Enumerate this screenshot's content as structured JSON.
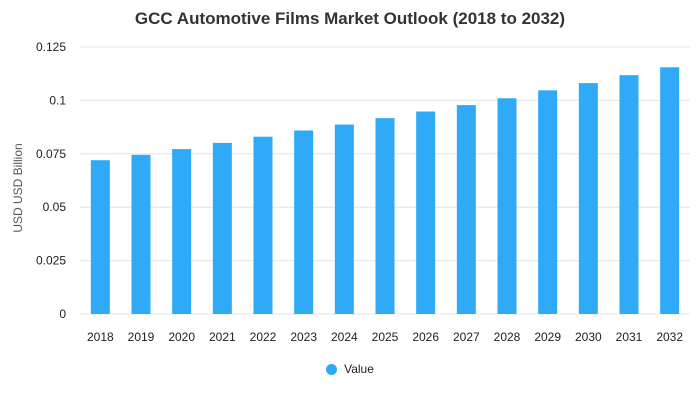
{
  "chart_data": {
    "type": "bar",
    "title": "GCC Automotive Films Market Outlook (2018 to 2032)",
    "xlabel": "",
    "ylabel": "USD USD Billion",
    "categories": [
      "2018",
      "2019",
      "2020",
      "2021",
      "2022",
      "2023",
      "2024",
      "2025",
      "2026",
      "2027",
      "2028",
      "2029",
      "2030",
      "2031",
      "2032"
    ],
    "series": [
      {
        "name": "Value",
        "values": [
          0.072,
          0.0745,
          0.0772,
          0.0801,
          0.083,
          0.0859,
          0.0887,
          0.0917,
          0.0948,
          0.0978,
          0.101,
          0.1047,
          0.1081,
          0.1118,
          0.1155
        ]
      }
    ],
    "ylim": [
      0,
      0.125
    ],
    "yticks": [
      "0",
      "0.025",
      "0.05",
      "0.075",
      "0.1",
      "0.125"
    ],
    "ytick_values": [
      0,
      0.025,
      0.05,
      0.075,
      0.1,
      0.125
    ],
    "grid": true,
    "legend_position": "bottom-center",
    "bar_color": "#2eaaf7"
  }
}
